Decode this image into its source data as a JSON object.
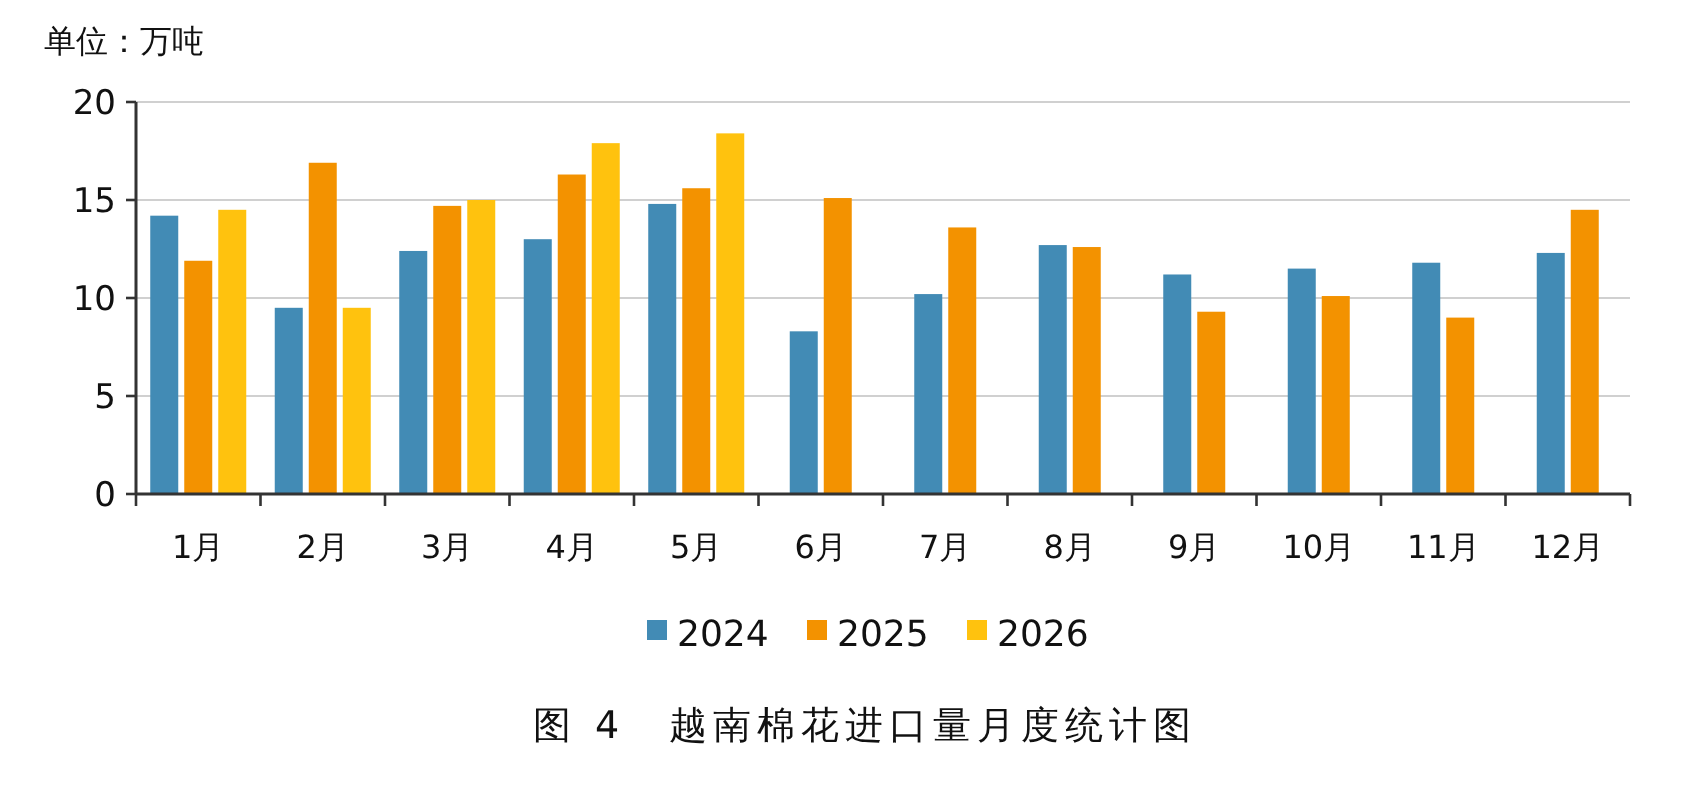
{
  "chart_data": {
    "type": "bar",
    "title": "图 4　越南棉花进口量月度统计图",
    "ylabel": "单位：万吨",
    "categories": [
      "1月",
      "2月",
      "3月",
      "4月",
      "5月",
      "6月",
      "7月",
      "8月",
      "9月",
      "10月",
      "11月",
      "12月"
    ],
    "series": [
      {
        "name": "2024",
        "color": "#428bb5",
        "values": [
          14.2,
          9.5,
          12.4,
          13.0,
          14.8,
          8.3,
          10.2,
          12.7,
          11.2,
          11.5,
          11.8,
          12.3
        ]
      },
      {
        "name": "2025",
        "color": "#f39200",
        "values": [
          11.9,
          16.9,
          14.7,
          16.3,
          15.6,
          15.1,
          13.6,
          12.6,
          9.3,
          10.1,
          9.0,
          14.5
        ]
      },
      {
        "name": "2026",
        "color": "#ffc20e",
        "values": [
          14.5,
          9.5,
          15.0,
          17.9,
          18.4,
          null,
          null,
          null,
          null,
          null,
          null,
          null
        ]
      }
    ],
    "ylim": [
      0,
      20
    ],
    "yticks": [
      0,
      5,
      10,
      15,
      20
    ],
    "grid": "y",
    "legend": "bottom"
  }
}
